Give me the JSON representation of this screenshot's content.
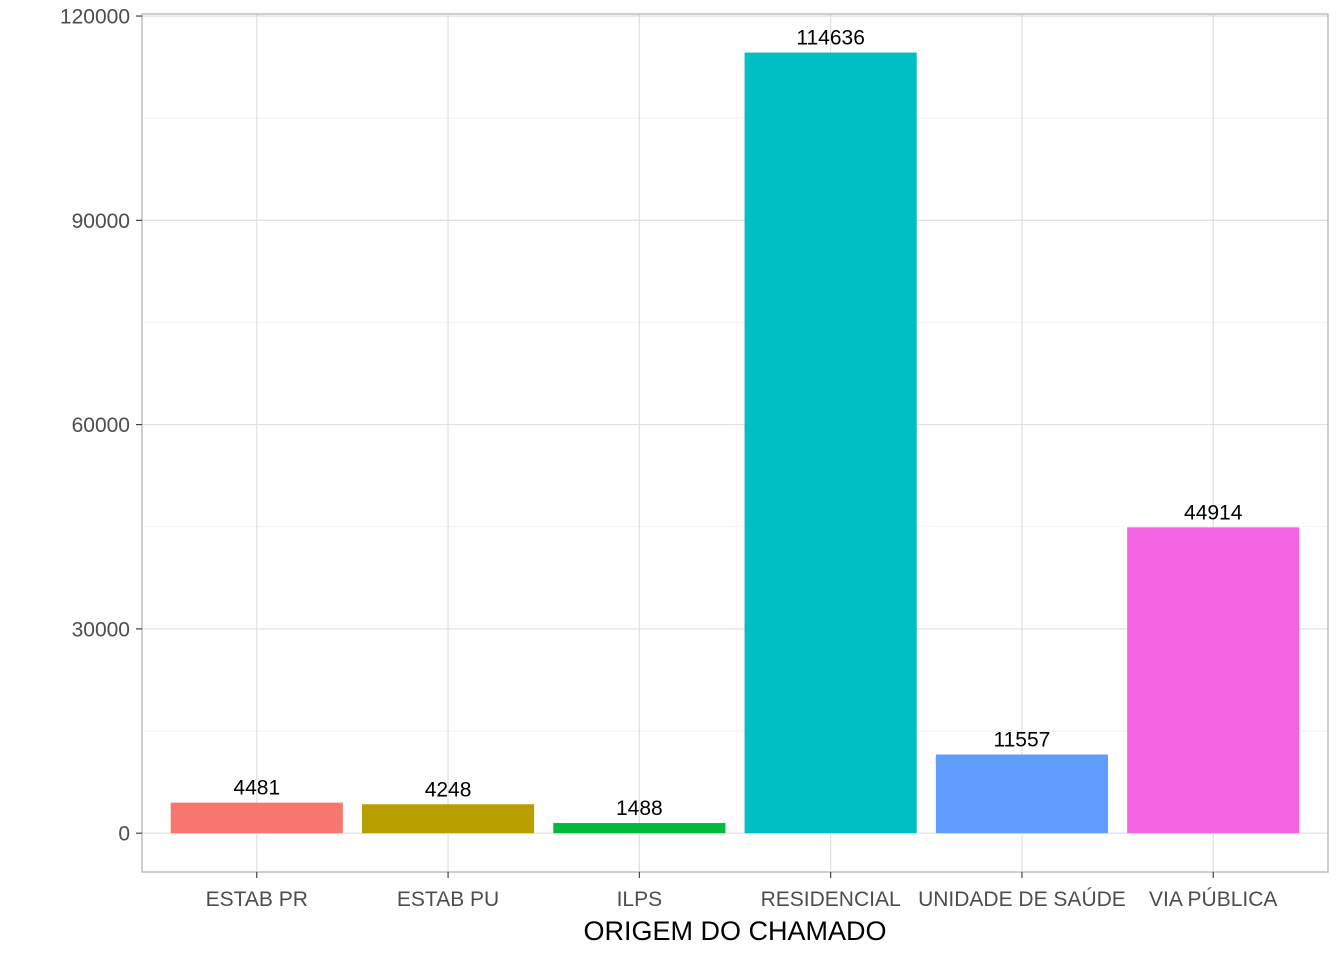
{
  "chart_data": {
    "type": "bar",
    "title": "",
    "xlabel": "ORIGEM DO CHAMADO",
    "ylabel": "",
    "categories": [
      "ESTAB PR",
      "ESTAB PU",
      "ILPS",
      "RESIDENCIAL",
      "UNIDADE DE SAÚDE",
      "VIA PÚBLICA"
    ],
    "values": [
      4481,
      4248,
      1488,
      114636,
      11557,
      44914
    ],
    "value_labels": [
      "4481",
      "4248",
      "1488",
      "114636",
      "11557",
      "44914"
    ],
    "colors": [
      "#F8766D",
      "#B79F00",
      "#00BA38",
      "#00BFC4",
      "#619CFF",
      "#F564E3"
    ],
    "ylim": [
      -5700,
      120300
    ],
    "yticks": [
      0,
      30000,
      60000,
      90000,
      120000
    ],
    "ytick_labels": [
      "0",
      "30000",
      "60000",
      "90000",
      "120000"
    ],
    "grid": true,
    "legend": "none"
  }
}
